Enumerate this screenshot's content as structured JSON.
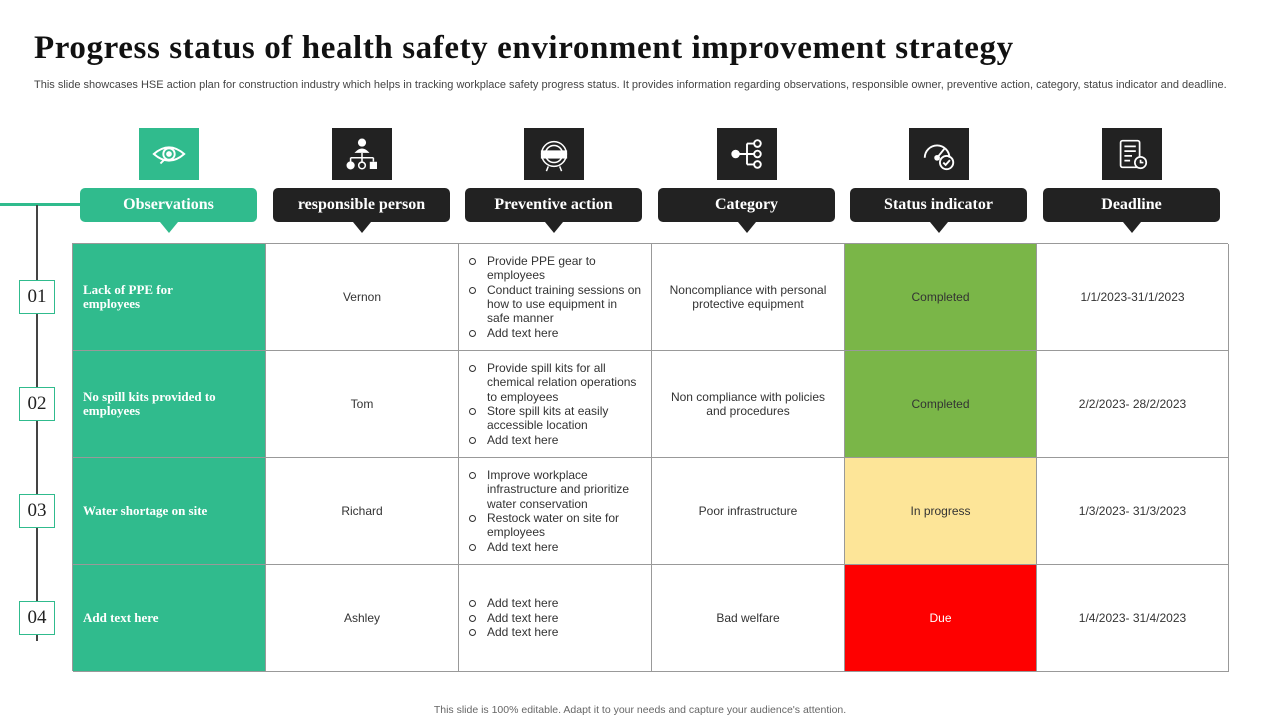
{
  "title": "Progress status of health safety environment improvement strategy",
  "subtitle": "This slide showcases HSE action plan for construction industry which helps in tracking workplace safety progress status. It provides information regarding observations, responsible owner, preventive action, category, status indicator and deadline.",
  "columns": [
    {
      "label": "Observations",
      "icon": "eye-icon"
    },
    {
      "label": "responsible person",
      "icon": "org-chart-icon"
    },
    {
      "label": "Preventive action",
      "icon": "action-badge-icon"
    },
    {
      "label": "Category",
      "icon": "hierarchy-icon"
    },
    {
      "label": "Status indicator",
      "icon": "gauge-check-icon"
    },
    {
      "label": "Deadline",
      "icon": "schedule-document-icon"
    }
  ],
  "rows": [
    {
      "number": "01",
      "observation": "Lack  of PPE for employees",
      "person": "Vernon",
      "actions": [
        "Provide PPE gear to employees",
        "Conduct training sessions on how to use equipment in safe manner",
        "Add text here"
      ],
      "category": "Noncompliance with personal protective equipment",
      "status": "Completed",
      "deadline": "1/1/2023-31/1/2023"
    },
    {
      "number": "02",
      "observation": "No spill kits provided to employees",
      "person": "Tom",
      "actions": [
        "Provide spill kits for all chemical relation operations to employees",
        "Store spill kits at easily accessible location",
        "Add text here"
      ],
      "category": "Non compliance with policies and procedures",
      "status": "Completed",
      "deadline": "2/2/2023- 28/2/2023"
    },
    {
      "number": "03",
      "observation": "Water shortage on site",
      "person": "Richard",
      "actions": [
        "Improve workplace infrastructure and prioritize water conservation",
        "Restock water on site for employees",
        "Add text here"
      ],
      "category": "Poor infrastructure",
      "status": "In progress",
      "deadline": "1/3/2023- 31/3/2023"
    },
    {
      "number": "04",
      "observation": "Add text here",
      "person": "Ashley",
      "actions": [
        "Add text here",
        "Add text here",
        "Add text here"
      ],
      "category": "Bad welfare",
      "status": "Due",
      "deadline": "1/4/2023- 31/4/2023"
    }
  ],
  "status_colors": {
    "Completed": {
      "bg": "#7ab648",
      "fg": "#333333"
    },
    "In progress": {
      "bg": "#fde598",
      "fg": "#333333"
    },
    "Due": {
      "bg": "#fe0000",
      "fg": "#ffffff"
    }
  },
  "accent_color": "#30bb8d",
  "footer": "This slide is 100% editable. Adapt it to your needs and capture your audience's attention."
}
